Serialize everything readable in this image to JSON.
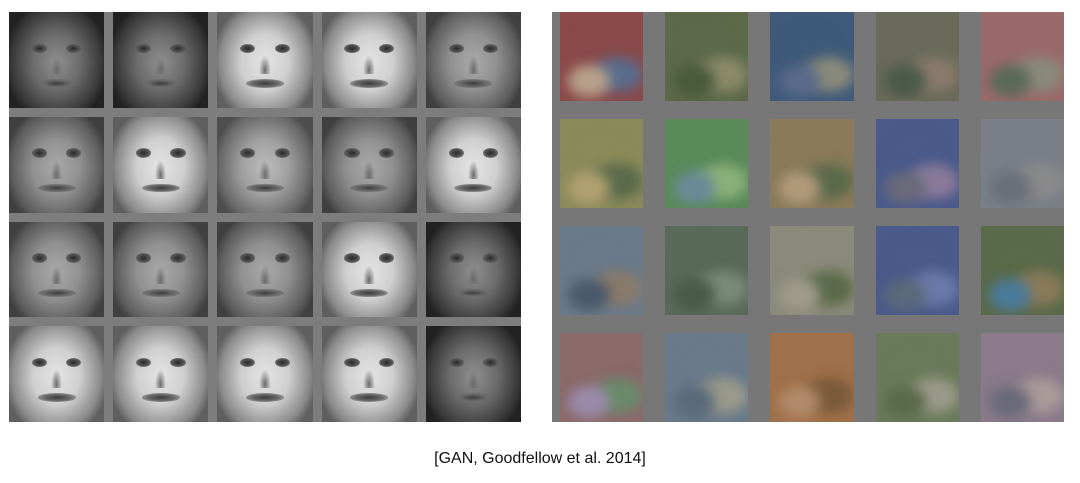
{
  "caption": "[GAN, Goodfellow et al. 2014]",
  "panels": [
    {
      "name": "face-samples",
      "rows": 4,
      "cols": 5,
      "style": "grayscale"
    },
    {
      "name": "cifar-samples",
      "rows": 4,
      "cols": 5,
      "style": "color"
    }
  ],
  "colors": {
    "panel_background": "#7a7a7a",
    "page_background": "#ffffff",
    "caption_text": "#111111"
  }
}
